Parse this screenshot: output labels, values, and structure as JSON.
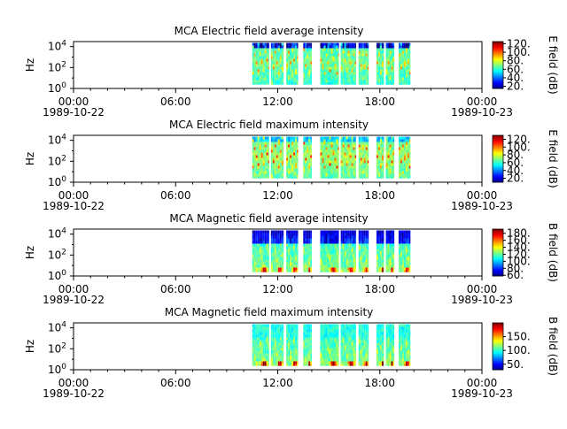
{
  "chart_data": [
    {
      "type": "heatmap",
      "title": "MCA  Electric field average intensity",
      "ylabel": "Hz",
      "yscale": "log",
      "ylim": [
        1,
        30000
      ],
      "yticks": [
        {
          "v": 1,
          "base": "10",
          "exp": "0"
        },
        {
          "v": 100,
          "base": "10",
          "exp": "2"
        },
        {
          "v": 10000,
          "base": "10",
          "exp": "4"
        }
      ],
      "xlim_hours": [
        0,
        24
      ],
      "xticks": [
        {
          "h": 0,
          "time": "00:00",
          "date": "1989-10-22"
        },
        {
          "h": 6,
          "time": "06:00",
          "date": ""
        },
        {
          "h": 12,
          "time": "12:00",
          "date": ""
        },
        {
          "h": 18,
          "time": "18:00",
          "date": ""
        },
        {
          "h": 24,
          "time": "00:00",
          "date": "1989-10-23"
        }
      ],
      "data_segments_hours": [
        [
          10.5,
          11.5
        ],
        [
          11.6,
          12.35
        ],
        [
          12.5,
          13.2
        ],
        [
          13.5,
          14.0
        ],
        [
          14.5,
          15.6
        ],
        [
          15.7,
          16.6
        ],
        [
          16.75,
          17.35
        ],
        [
          17.8,
          18.25
        ],
        [
          18.35,
          18.85
        ],
        [
          19.1,
          19.8
        ]
      ],
      "colorbar": {
        "label": "E field (dB)",
        "min": 15,
        "max": 125,
        "ticks": [
          "20.",
          "40.",
          "60.",
          "80.",
          "100.",
          "120."
        ],
        "tick_values": [
          20,
          40,
          60,
          80,
          100,
          120
        ]
      },
      "profile": "e_avg"
    },
    {
      "type": "heatmap",
      "title": "MCA  Electric field maximum intensity",
      "ylabel": "Hz",
      "yscale": "log",
      "ylim": [
        1,
        30000
      ],
      "yticks": [
        {
          "v": 1,
          "base": "10",
          "exp": "0"
        },
        {
          "v": 100,
          "base": "10",
          "exp": "2"
        },
        {
          "v": 10000,
          "base": "10",
          "exp": "4"
        }
      ],
      "xlim_hours": [
        0,
        24
      ],
      "xticks": [
        {
          "h": 0,
          "time": "00:00",
          "date": "1989-10-22"
        },
        {
          "h": 6,
          "time": "06:00",
          "date": ""
        },
        {
          "h": 12,
          "time": "12:00",
          "date": ""
        },
        {
          "h": 18,
          "time": "18:00",
          "date": ""
        },
        {
          "h": 24,
          "time": "00:00",
          "date": "1989-10-23"
        }
      ],
      "data_segments_hours": [
        [
          10.5,
          11.5
        ],
        [
          11.6,
          12.35
        ],
        [
          12.5,
          13.2
        ],
        [
          13.5,
          14.0
        ],
        [
          14.5,
          15.6
        ],
        [
          15.7,
          16.6
        ],
        [
          16.75,
          17.35
        ],
        [
          17.8,
          18.25
        ],
        [
          18.35,
          18.85
        ],
        [
          19.1,
          19.8
        ]
      ],
      "colorbar": {
        "label": "E field (dB)",
        "min": 10,
        "max": 130,
        "ticks": [
          "20.",
          "40.",
          "60.",
          "80.",
          "100.",
          "120."
        ],
        "tick_values": [
          20,
          40,
          60,
          80,
          100,
          120
        ]
      },
      "profile": "e_max"
    },
    {
      "type": "heatmap",
      "title": "MCA  Magnetic field average intensity",
      "ylabel": "Hz",
      "yscale": "log",
      "ylim": [
        1,
        30000
      ],
      "yticks": [
        {
          "v": 1,
          "base": "10",
          "exp": "0"
        },
        {
          "v": 100,
          "base": "10",
          "exp": "2"
        },
        {
          "v": 10000,
          "base": "10",
          "exp": "4"
        }
      ],
      "xlim_hours": [
        0,
        24
      ],
      "xticks": [
        {
          "h": 0,
          "time": "00:00",
          "date": "1989-10-22"
        },
        {
          "h": 6,
          "time": "06:00",
          "date": ""
        },
        {
          "h": 12,
          "time": "12:00",
          "date": ""
        },
        {
          "h": 18,
          "time": "18:00",
          "date": ""
        },
        {
          "h": 24,
          "time": "00:00",
          "date": "1989-10-23"
        }
      ],
      "data_segments_hours": [
        [
          10.5,
          11.5
        ],
        [
          11.6,
          12.35
        ],
        [
          12.5,
          13.2
        ],
        [
          13.5,
          14.0
        ],
        [
          14.5,
          15.6
        ],
        [
          15.7,
          16.6
        ],
        [
          16.75,
          17.35
        ],
        [
          17.8,
          18.25
        ],
        [
          18.35,
          18.85
        ],
        [
          19.1,
          19.8
        ]
      ],
      "colorbar": {
        "label": "B field (dB)",
        "min": 58,
        "max": 192,
        "ticks": [
          "60.",
          "80.",
          "100.",
          "120.",
          "140.",
          "160.",
          "180."
        ],
        "tick_values": [
          60,
          80,
          100,
          120,
          140,
          160,
          180
        ]
      },
      "profile": "b_avg"
    },
    {
      "type": "heatmap",
      "title": "MCA  Magnetic field maximum intensity",
      "ylabel": "Hz",
      "yscale": "log",
      "ylim": [
        1,
        30000
      ],
      "yticks": [
        {
          "v": 1,
          "base": "10",
          "exp": "0"
        },
        {
          "v": 100,
          "base": "10",
          "exp": "2"
        },
        {
          "v": 10000,
          "base": "10",
          "exp": "4"
        }
      ],
      "xlim_hours": [
        0,
        24
      ],
      "xticks": [
        {
          "h": 0,
          "time": "00:00",
          "date": "1989-10-22"
        },
        {
          "h": 6,
          "time": "06:00",
          "date": ""
        },
        {
          "h": 12,
          "time": "12:00",
          "date": ""
        },
        {
          "h": 18,
          "time": "18:00",
          "date": ""
        },
        {
          "h": 24,
          "time": "00:00",
          "date": "1989-10-23"
        }
      ],
      "data_segments_hours": [
        [
          10.5,
          11.5
        ],
        [
          11.6,
          12.35
        ],
        [
          12.5,
          13.2
        ],
        [
          13.5,
          14.0
        ],
        [
          14.5,
          15.6
        ],
        [
          15.7,
          16.6
        ],
        [
          16.75,
          17.35
        ],
        [
          17.8,
          18.25
        ],
        [
          18.35,
          18.85
        ],
        [
          19.1,
          19.8
        ]
      ],
      "colorbar": {
        "label": "B field (dB)",
        "min": 30,
        "max": 200,
        "ticks": [
          "50.",
          "100.",
          "150."
        ],
        "tick_values": [
          50,
          100,
          150
        ]
      },
      "profile": "b_max"
    }
  ]
}
